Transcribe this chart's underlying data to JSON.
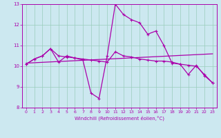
{
  "xlabel": "Windchill (Refroidissement éolien,°C)",
  "background_color": "#cce8f0",
  "grid_color": "#99ccbb",
  "line_color": "#aa00aa",
  "xlim": [
    -0.5,
    23.5
  ],
  "ylim": [
    8,
    13
  ],
  "yticks": [
    8,
    9,
    10,
    11,
    12,
    13
  ],
  "xticks": [
    0,
    1,
    2,
    3,
    4,
    5,
    6,
    7,
    8,
    9,
    10,
    11,
    12,
    13,
    14,
    15,
    16,
    17,
    18,
    19,
    20,
    21,
    22,
    23
  ],
  "series": {
    "line1": {
      "x": [
        0,
        1,
        2,
        3,
        4,
        5,
        6,
        7,
        8,
        9,
        10,
        11,
        12,
        13,
        14,
        15,
        16,
        17,
        18,
        19,
        20,
        21,
        22,
        23
      ],
      "y": [
        10.1,
        10.35,
        10.5,
        10.85,
        10.2,
        10.5,
        10.4,
        10.3,
        8.7,
        8.45,
        10.5,
        13.0,
        12.5,
        12.25,
        12.1,
        11.55,
        11.7,
        11.0,
        10.15,
        10.1,
        9.6,
        10.05,
        9.55,
        9.2
      ]
    },
    "line2": {
      "x": [
        0,
        1,
        2,
        3,
        4,
        5,
        6,
        7,
        8,
        9,
        10,
        11,
        12,
        13,
        14,
        15,
        16,
        17,
        18,
        19,
        20,
        21,
        22,
        23
      ],
      "y": [
        10.1,
        10.35,
        10.5,
        10.85,
        10.5,
        10.45,
        10.4,
        10.35,
        10.3,
        10.25,
        10.2,
        10.7,
        10.5,
        10.45,
        10.35,
        10.3,
        10.25,
        10.25,
        10.2,
        10.1,
        10.05,
        10.0,
        9.6,
        9.2
      ]
    },
    "line3": {
      "x": [
        0,
        23
      ],
      "y": [
        10.15,
        10.6
      ]
    }
  }
}
